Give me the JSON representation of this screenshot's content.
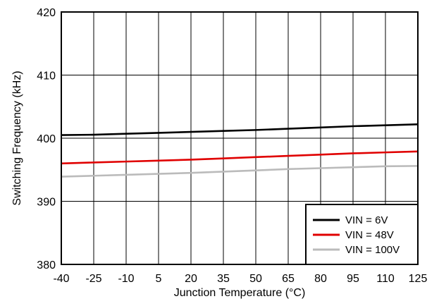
{
  "chart_data": {
    "type": "line",
    "title": "",
    "xlabel": "Junction Temperature (°C)",
    "ylabel": "Switching Frequency (kHz)",
    "x_ticks": [
      "-40",
      "-25",
      "-10",
      "5",
      "20",
      "35",
      "50",
      "65",
      "80",
      "95",
      "110",
      "125"
    ],
    "y_ticks": [
      "380",
      "390",
      "400",
      "410",
      "420"
    ],
    "xlim": [
      -40,
      125
    ],
    "ylim": [
      380,
      420
    ],
    "grid": true,
    "legend_position": "bottom-right",
    "x": [
      -40,
      -25,
      -10,
      5,
      20,
      35,
      50,
      65,
      80,
      95,
      110,
      125
    ],
    "series": [
      {
        "name": "VIN = 6V",
        "color": "#000000",
        "values": [
          400.5,
          400.55,
          400.7,
          400.85,
          401.0,
          401.15,
          401.3,
          401.5,
          401.7,
          401.9,
          402.05,
          402.2
        ]
      },
      {
        "name": "VIN = 48V",
        "color": "#e00000",
        "values": [
          396.0,
          396.15,
          396.3,
          396.45,
          396.6,
          396.8,
          397.0,
          397.2,
          397.4,
          397.6,
          397.75,
          397.9
        ]
      },
      {
        "name": "VIN = 100V",
        "color": "#bbbbbb",
        "values": [
          393.9,
          394.05,
          394.2,
          394.35,
          394.5,
          394.7,
          394.9,
          395.1,
          395.25,
          395.4,
          395.55,
          395.6
        ]
      }
    ]
  }
}
